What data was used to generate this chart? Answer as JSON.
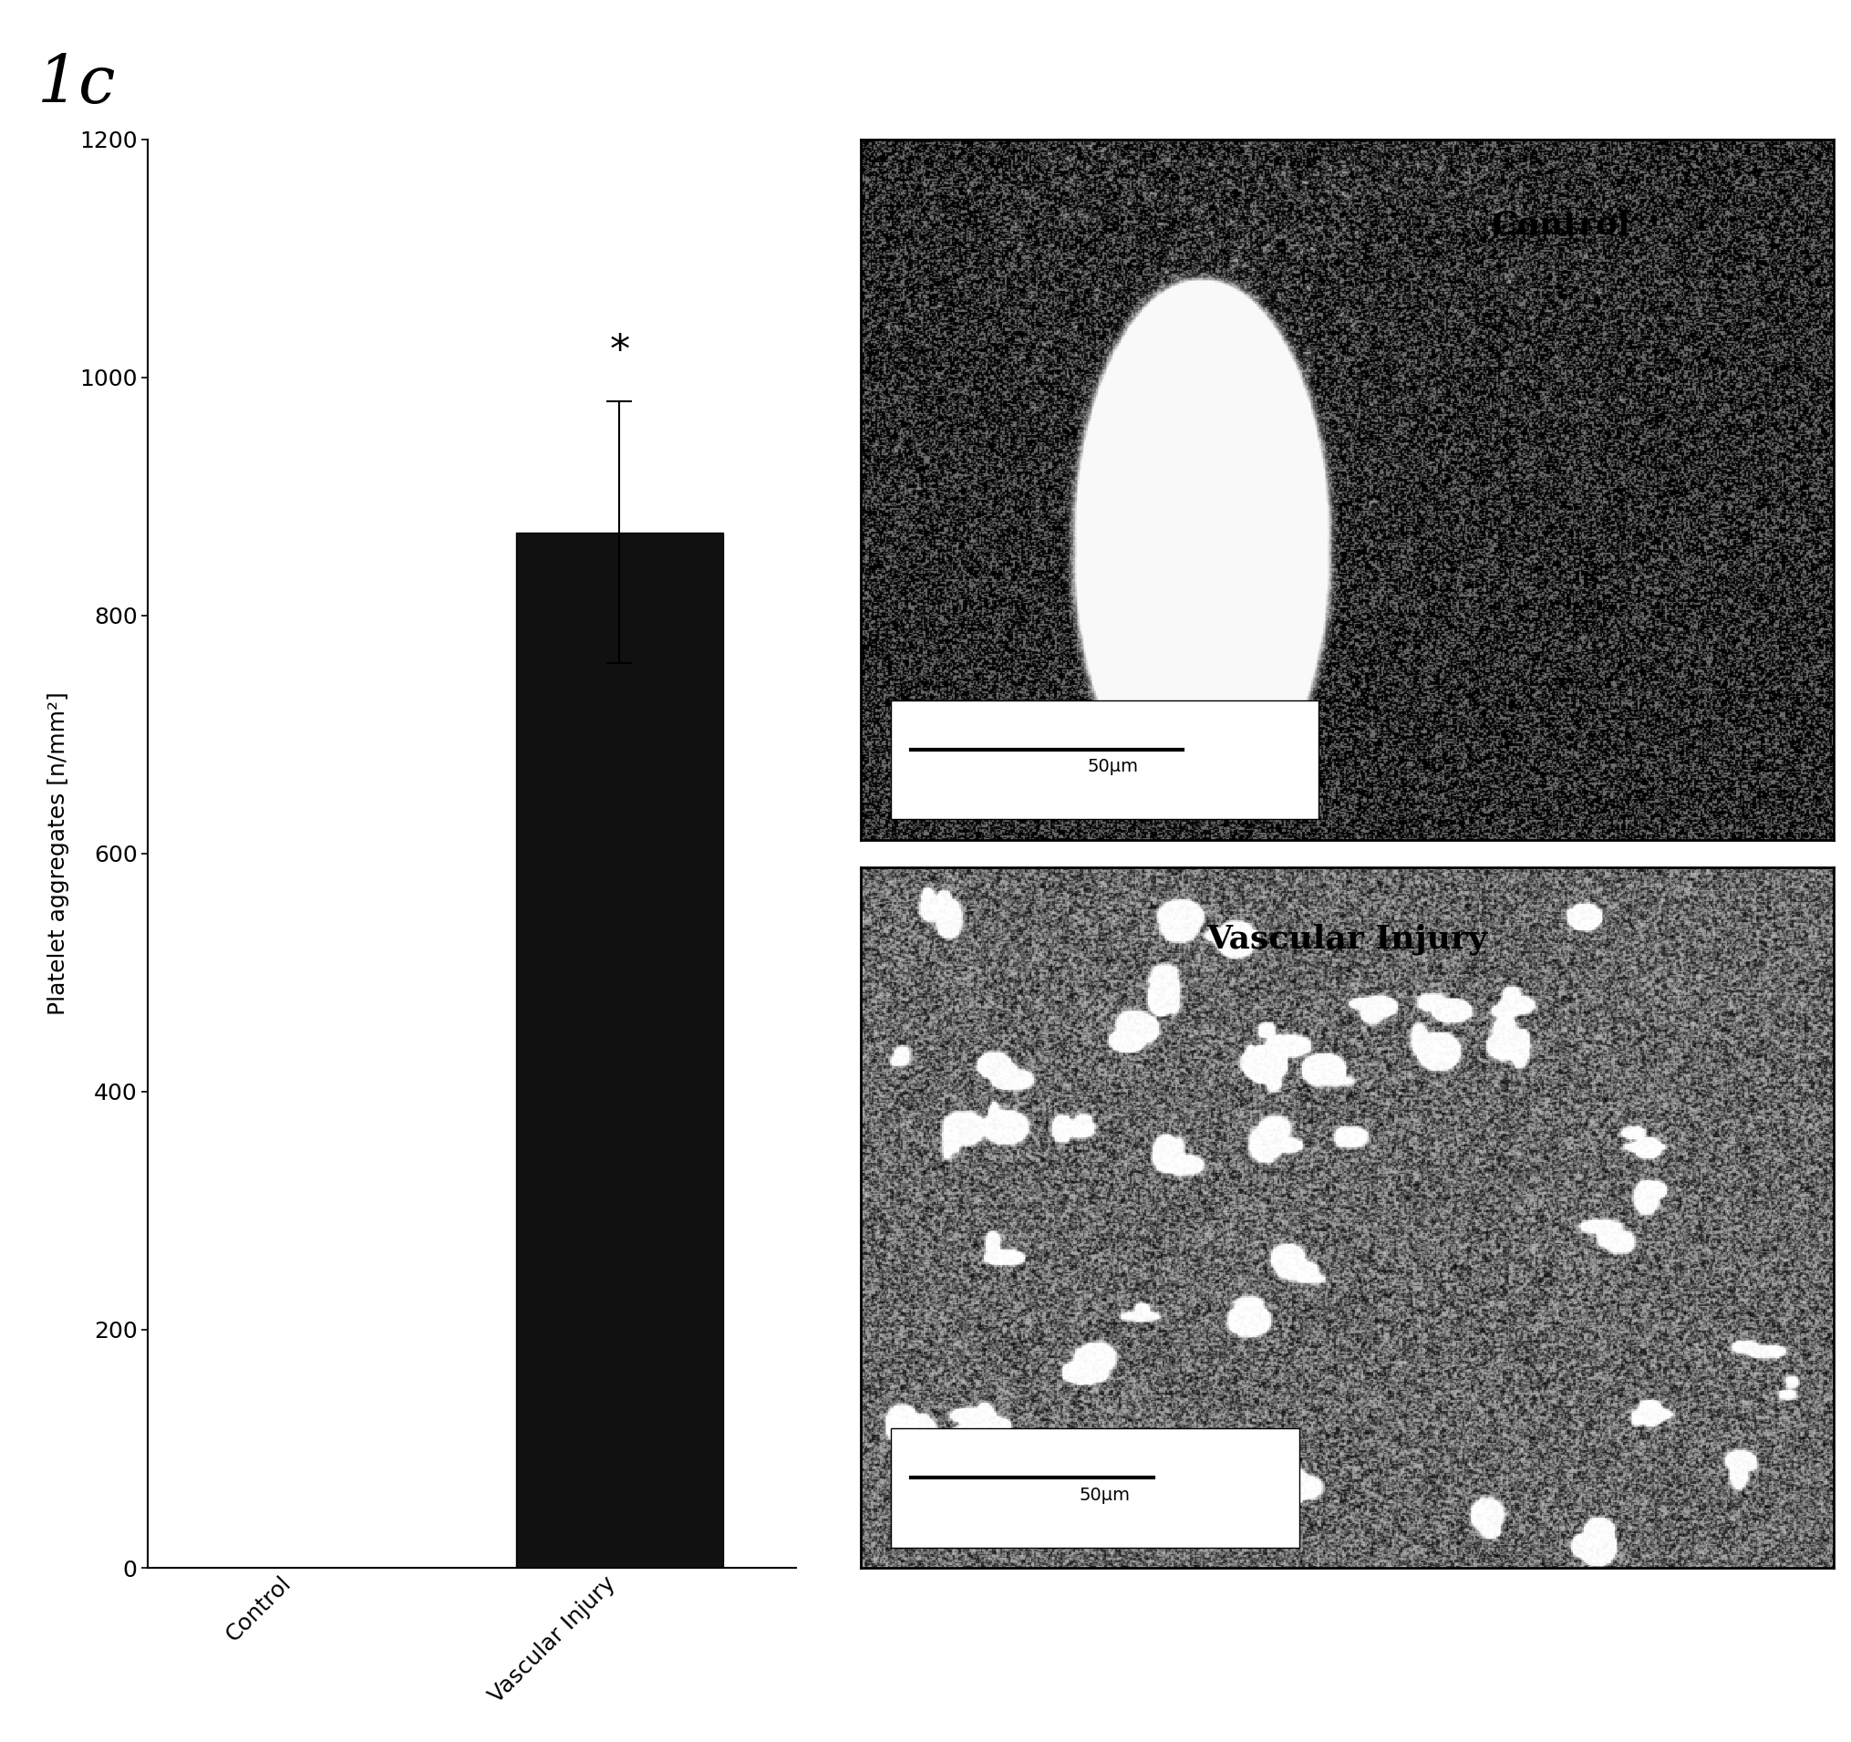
{
  "panel_label": "1c",
  "bar_categories": [
    "Control",
    "Vascular Injury"
  ],
  "bar_values": [
    0,
    870
  ],
  "bar_error": [
    0,
    110
  ],
  "bar_color": "#111111",
  "ylabel": "Platelet aggregates [n/mm²]",
  "ylim": [
    0,
    1200
  ],
  "yticks": [
    0,
    200,
    400,
    600,
    800,
    1000,
    1200
  ],
  "significance_label": "*",
  "control_image_label": "Control",
  "injury_image_label": "Vascular Injury",
  "scalebar_label": "50μm",
  "background_color": "#ffffff",
  "axis_color": "#000000",
  "title_fontsize": 28,
  "tick_fontsize": 18,
  "ylabel_fontsize": 18,
  "bar_width": 0.35,
  "img_noise_seed": 42
}
